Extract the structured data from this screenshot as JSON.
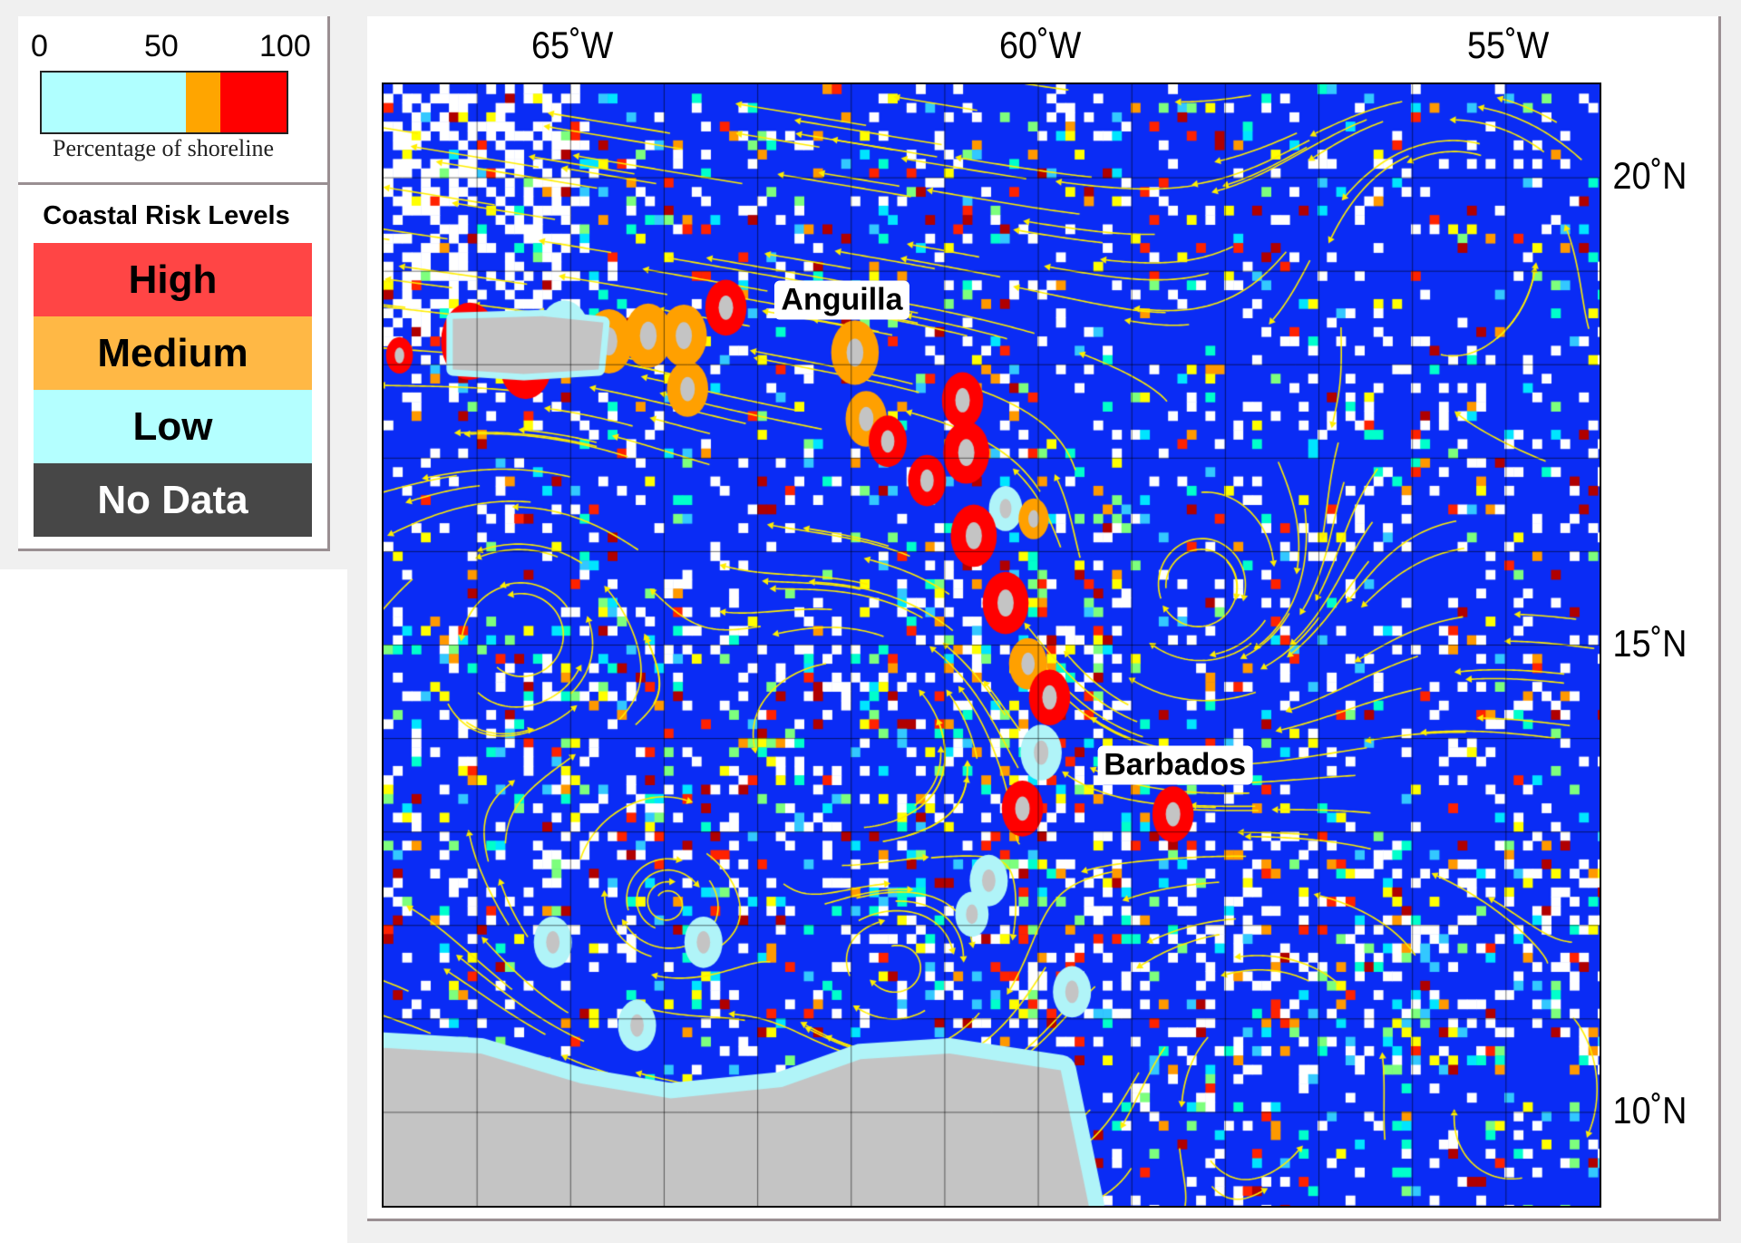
{
  "legend": {
    "colorbar": {
      "ticks": [
        "0",
        "50",
        "100"
      ],
      "title": "Percentage of shoreline",
      "segments": [
        {
          "from": 0,
          "to": 59,
          "color": "#b0ffff"
        },
        {
          "from": 59,
          "to": 73,
          "color": "#ffa500"
        },
        {
          "from": 73,
          "to": 100,
          "color": "#ff0000"
        }
      ]
    },
    "risk_title": "Coastal Risk Levels",
    "levels": [
      {
        "label": "High",
        "color": "#ff4545",
        "text_color": "#000000"
      },
      {
        "label": "Medium",
        "color": "#ffb845",
        "text_color": "#000000"
      },
      {
        "label": "Low",
        "color": "#b4ffff",
        "text_color": "#000000"
      },
      {
        "label": "No Data",
        "color": "#474747",
        "text_color": "#ffffff"
      }
    ]
  },
  "map": {
    "extent": {
      "lon": [
        -67,
        -54
      ],
      "lat": [
        9,
        21
      ]
    },
    "lon_labels": [
      {
        "lon": -65,
        "text": "65˚W"
      },
      {
        "lon": -60,
        "text": "60˚W"
      },
      {
        "lon": -55,
        "text": "55˚W"
      }
    ],
    "lat_labels": [
      {
        "lat": 20,
        "text": "20˚N"
      },
      {
        "lat": 15,
        "text": "15˚N"
      },
      {
        "lat": 10,
        "text": "10˚N"
      }
    ],
    "grid_step_deg": 1,
    "colors": {
      "ocean": "#0a2cf5",
      "land": "#c4c4c4",
      "no_data": "#ffffff",
      "current_arrows": "#ffee00",
      "high": "#ff0000",
      "medium": "#ffa000",
      "low": "#b0f4f8"
    },
    "places": [
      {
        "name": "Anguilla",
        "lon": -62.1,
        "lat": 18.69
      },
      {
        "name": "Barbados",
        "lon": -58.54,
        "lat": 13.71
      }
    ],
    "land": [
      [
        [
          -66.26,
          18.49
        ],
        [
          -65.3,
          18.52
        ],
        [
          -64.65,
          18.45
        ],
        [
          -64.7,
          17.95
        ],
        [
          -65.5,
          17.9
        ],
        [
          -66.26,
          17.95
        ]
      ],
      [
        [
          -67,
          10.69
        ],
        [
          -65.96,
          10.63
        ],
        [
          -64.89,
          10.31
        ],
        [
          -63.93,
          10.15
        ],
        [
          -62.74,
          10.27
        ],
        [
          -61.9,
          10.57
        ],
        [
          -60.95,
          10.63
        ],
        [
          -59.76,
          10.45
        ],
        [
          -59.46,
          9.0
        ],
        [
          -67,
          9.0
        ]
      ]
    ],
    "risk_zones": [
      {
        "lon": -66.08,
        "lat": 18.25,
        "r": 0.36,
        "level": "high"
      },
      {
        "lon": -65.48,
        "lat": 18.01,
        "r": 0.33,
        "level": "high"
      },
      {
        "lon": -66.83,
        "lat": 18.1,
        "r": 0.17,
        "level": "high"
      },
      {
        "lon": -65.07,
        "lat": 18.31,
        "r": 0.33,
        "level": "low"
      },
      {
        "lon": -64.59,
        "lat": 18.25,
        "r": 0.3,
        "level": "medium"
      },
      {
        "lon": -64.17,
        "lat": 18.31,
        "r": 0.3,
        "level": "medium"
      },
      {
        "lon": -63.79,
        "lat": 18.31,
        "r": 0.29,
        "level": "medium"
      },
      {
        "lon": -63.75,
        "lat": 17.74,
        "r": 0.26,
        "level": "medium"
      },
      {
        "lon": -63.34,
        "lat": 18.61,
        "r": 0.26,
        "level": "high"
      },
      {
        "lon": -61.96,
        "lat": 18.13,
        "r": 0.3,
        "level": "medium"
      },
      {
        "lon": -61.84,
        "lat": 17.42,
        "r": 0.26,
        "level": "medium"
      },
      {
        "lon": -61.61,
        "lat": 17.18,
        "r": 0.24,
        "level": "high"
      },
      {
        "lon": -60.81,
        "lat": 17.62,
        "r": 0.26,
        "level": "high"
      },
      {
        "lon": -60.77,
        "lat": 17.06,
        "r": 0.29,
        "level": "high"
      },
      {
        "lon": -61.19,
        "lat": 16.76,
        "r": 0.24,
        "level": "high"
      },
      {
        "lon": -60.35,
        "lat": 16.46,
        "r": 0.21,
        "level": "low"
      },
      {
        "lon": -60.05,
        "lat": 16.35,
        "r": 0.19,
        "level": "medium"
      },
      {
        "lon": -60.69,
        "lat": 16.17,
        "r": 0.29,
        "level": "high"
      },
      {
        "lon": -60.35,
        "lat": 15.45,
        "r": 0.29,
        "level": "high"
      },
      {
        "lon": -60.11,
        "lat": 14.8,
        "r": 0.24,
        "level": "medium"
      },
      {
        "lon": -59.88,
        "lat": 14.44,
        "r": 0.26,
        "level": "high"
      },
      {
        "lon": -59.97,
        "lat": 13.85,
        "r": 0.26,
        "level": "low"
      },
      {
        "lon": -60.17,
        "lat": 13.25,
        "r": 0.26,
        "level": "high"
      },
      {
        "lon": -58.56,
        "lat": 13.19,
        "r": 0.26,
        "level": "high"
      },
      {
        "lon": -60.53,
        "lat": 12.48,
        "r": 0.24,
        "level": "low"
      },
      {
        "lon": -60.71,
        "lat": 12.12,
        "r": 0.21,
        "level": "low"
      },
      {
        "lon": -65.19,
        "lat": 11.82,
        "r": 0.24,
        "level": "low"
      },
      {
        "lon": -63.58,
        "lat": 11.82,
        "r": 0.24,
        "level": "low"
      },
      {
        "lon": -64.29,
        "lat": 10.93,
        "r": 0.24,
        "level": "low"
      },
      {
        "lon": -59.64,
        "lat": 11.29,
        "r": 0.24,
        "level": "low"
      }
    ]
  }
}
